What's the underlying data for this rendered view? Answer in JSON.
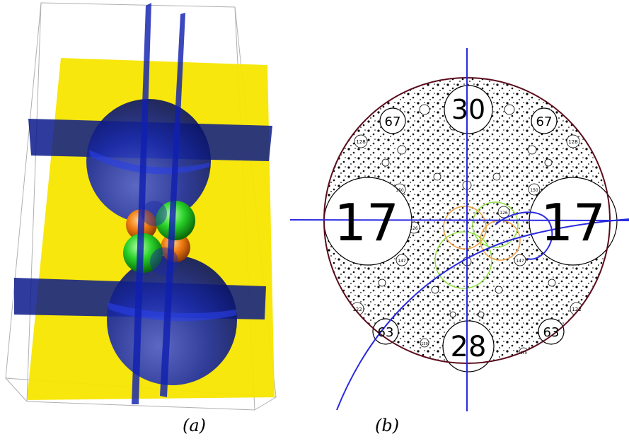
{
  "panels": {
    "a": {
      "label": "(a)"
    },
    "b": {
      "label": "(b)",
      "circle_labels": {
        "top": "30",
        "bottom": "28",
        "left": "17",
        "right": "17",
        "upper_left": "67",
        "upper_right": "67",
        "lower_left": "63",
        "lower_right": "63"
      },
      "small_labels": [
        "128",
        "128",
        "150",
        "150",
        "126",
        "126",
        "147",
        "147",
        "122",
        "122",
        "159",
        "159"
      ]
    }
  },
  "colors": {
    "plane_yellow": "#f7e600",
    "plane_blue": "#0a1a8c",
    "sphere_blue": "#1a2ed0",
    "sphere_green": "#22c922",
    "sphere_orange": "#f07a10",
    "circle_outline": "#5a0c1c",
    "axis_blue": "#2a2ae0",
    "ring_orange": "#f0a040",
    "ring_green": "#90e040"
  }
}
